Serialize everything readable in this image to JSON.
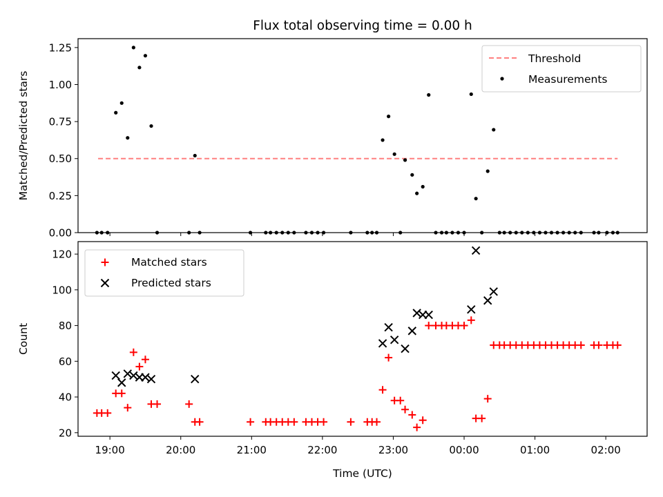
{
  "figure": {
    "title": "Flux total observing time = 0.00 h"
  },
  "chart_data": [
    {
      "type": "scatter",
      "panel": "top",
      "title": "Flux total observing time = 0.00 h",
      "xlabel": "",
      "ylabel": "Matched/Predicted stars",
      "x_type": "time",
      "xlim": [
        "18:33",
        "02:35"
      ],
      "ylim": [
        0,
        1.31
      ],
      "yticks": [
        0.0,
        0.25,
        0.5,
        0.75,
        1.0,
        1.25
      ],
      "ytick_labels": [
        "0.00",
        "0.25",
        "0.50",
        "0.75",
        "1.00",
        "1.25"
      ],
      "grid": false,
      "legend": {
        "placement": "top-right",
        "entries": [
          "Threshold",
          "Measurements"
        ]
      },
      "threshold": {
        "name": "Threshold",
        "y": 0.5,
        "x_start": "18:50",
        "x_end": "02:10",
        "color": "#ff7f7f",
        "style": "dashed"
      },
      "series": [
        {
          "name": "Measurements",
          "marker": "dot",
          "color": "#000000",
          "points": [
            [
              "18:49",
              0.0
            ],
            [
              "18:53",
              0.0
            ],
            [
              "18:58",
              0.0
            ],
            [
              "19:05",
              0.81
            ],
            [
              "19:10",
              0.875
            ],
            [
              "19:15",
              0.64
            ],
            [
              "19:20",
              1.25
            ],
            [
              "19:25",
              1.115
            ],
            [
              "19:30",
              1.195
            ],
            [
              "19:35",
              0.72
            ],
            [
              "19:40",
              0.0
            ],
            [
              "20:07",
              0.0
            ],
            [
              "20:12",
              0.52
            ],
            [
              "20:16",
              0.0
            ],
            [
              "20:59",
              0.0
            ],
            [
              "21:12",
              0.0
            ],
            [
              "21:16",
              0.0
            ],
            [
              "21:21",
              0.0
            ],
            [
              "21:26",
              0.0
            ],
            [
              "21:31",
              0.0
            ],
            [
              "21:36",
              0.0
            ],
            [
              "21:46",
              0.0
            ],
            [
              "21:51",
              0.0
            ],
            [
              "21:56",
              0.0
            ],
            [
              "22:01",
              0.0
            ],
            [
              "22:24",
              0.0
            ],
            [
              "22:38",
              0.0
            ],
            [
              "22:42",
              0.0
            ],
            [
              "22:46",
              0.0
            ],
            [
              "22:51",
              0.625
            ],
            [
              "22:56",
              0.785
            ],
            [
              "23:01",
              0.53
            ],
            [
              "23:06",
              0.0
            ],
            [
              "23:10",
              0.49
            ],
            [
              "23:16",
              0.39
            ],
            [
              "23:20",
              0.265
            ],
            [
              "23:25",
              0.31
            ],
            [
              "23:30",
              0.93
            ],
            [
              "23:36",
              0.0
            ],
            [
              "23:41",
              0.0
            ],
            [
              "23:45",
              0.0
            ],
            [
              "23:50",
              0.0
            ],
            [
              "23:55",
              0.0
            ],
            [
              "00:00",
              0.0
            ],
            [
              "00:06",
              0.935
            ],
            [
              "00:10",
              0.23
            ],
            [
              "00:15",
              0.0
            ],
            [
              "00:20",
              0.415
            ],
            [
              "00:25",
              0.695
            ],
            [
              "00:30",
              0.0
            ],
            [
              "00:34",
              0.0
            ],
            [
              "00:39",
              0.0
            ],
            [
              "00:44",
              0.0
            ],
            [
              "00:49",
              0.0
            ],
            [
              "00:54",
              0.0
            ],
            [
              "00:59",
              0.0
            ],
            [
              "01:04",
              0.0
            ],
            [
              "01:09",
              0.0
            ],
            [
              "01:14",
              0.0
            ],
            [
              "01:19",
              0.0
            ],
            [
              "01:24",
              0.0
            ],
            [
              "01:29",
              0.0
            ],
            [
              "01:34",
              0.0
            ],
            [
              "01:39",
              0.0
            ],
            [
              "01:50",
              0.0
            ],
            [
              "01:54",
              0.0
            ],
            [
              "02:01",
              0.0
            ],
            [
              "02:06",
              0.0
            ],
            [
              "02:10",
              0.0
            ]
          ]
        }
      ]
    },
    {
      "type": "scatter",
      "panel": "bottom",
      "title": "",
      "xlabel": "Time (UTC)",
      "ylabel": "Count",
      "x_type": "time",
      "xlim": [
        "18:33",
        "02:35"
      ],
      "ylim": [
        18,
        127
      ],
      "xticks": [
        "19:00",
        "20:00",
        "21:00",
        "22:00",
        "23:00",
        "00:00",
        "01:00",
        "02:00"
      ],
      "yticks": [
        20,
        40,
        60,
        80,
        100,
        120
      ],
      "ytick_labels": [
        "20",
        "40",
        "60",
        "80",
        "100",
        "120"
      ],
      "grid": false,
      "legend": {
        "placement": "top-left",
        "entries": [
          "Matched stars",
          "Predicted stars"
        ]
      },
      "series": [
        {
          "name": "Matched stars",
          "marker": "plus",
          "color": "#ff0000",
          "points": [
            [
              "18:49",
              31
            ],
            [
              "18:53",
              31
            ],
            [
              "18:58",
              31
            ],
            [
              "19:05",
              42
            ],
            [
              "19:10",
              42
            ],
            [
              "19:15",
              34
            ],
            [
              "19:20",
              65
            ],
            [
              "19:25",
              57
            ],
            [
              "19:30",
              61
            ],
            [
              "19:35",
              36
            ],
            [
              "19:40",
              36
            ],
            [
              "20:07",
              36
            ],
            [
              "20:12",
              26
            ],
            [
              "20:16",
              26
            ],
            [
              "20:59",
              26
            ],
            [
              "21:12",
              26
            ],
            [
              "21:16",
              26
            ],
            [
              "21:21",
              26
            ],
            [
              "21:26",
              26
            ],
            [
              "21:31",
              26
            ],
            [
              "21:36",
              26
            ],
            [
              "21:46",
              26
            ],
            [
              "21:51",
              26
            ],
            [
              "21:56",
              26
            ],
            [
              "22:01",
              26
            ],
            [
              "22:24",
              26
            ],
            [
              "22:38",
              26
            ],
            [
              "22:42",
              26
            ],
            [
              "22:46",
              26
            ],
            [
              "22:51",
              44
            ],
            [
              "22:56",
              62
            ],
            [
              "23:01",
              38
            ],
            [
              "23:06",
              38
            ],
            [
              "23:10",
              33
            ],
            [
              "23:16",
              30
            ],
            [
              "23:20",
              23
            ],
            [
              "23:25",
              27
            ],
            [
              "23:30",
              80
            ],
            [
              "23:36",
              80
            ],
            [
              "23:41",
              80
            ],
            [
              "23:45",
              80
            ],
            [
              "23:50",
              80
            ],
            [
              "23:55",
              80
            ],
            [
              "00:00",
              80
            ],
            [
              "00:06",
              83
            ],
            [
              "00:10",
              28
            ],
            [
              "00:15",
              28
            ],
            [
              "00:20",
              39
            ],
            [
              "00:25",
              69
            ],
            [
              "00:30",
              69
            ],
            [
              "00:34",
              69
            ],
            [
              "00:39",
              69
            ],
            [
              "00:44",
              69
            ],
            [
              "00:49",
              69
            ],
            [
              "00:54",
              69
            ],
            [
              "00:59",
              69
            ],
            [
              "01:04",
              69
            ],
            [
              "01:09",
              69
            ],
            [
              "01:14",
              69
            ],
            [
              "01:19",
              69
            ],
            [
              "01:24",
              69
            ],
            [
              "01:29",
              69
            ],
            [
              "01:34",
              69
            ],
            [
              "01:39",
              69
            ],
            [
              "01:50",
              69
            ],
            [
              "01:54",
              69
            ],
            [
              "02:01",
              69
            ],
            [
              "02:06",
              69
            ],
            [
              "02:10",
              69
            ]
          ]
        },
        {
          "name": "Predicted stars",
          "marker": "x",
          "color": "#000000",
          "points": [
            [
              "19:05",
              52
            ],
            [
              "19:10",
              48
            ],
            [
              "19:15",
              53
            ],
            [
              "19:20",
              52
            ],
            [
              "19:25",
              51
            ],
            [
              "19:30",
              51
            ],
            [
              "19:35",
              50
            ],
            [
              "20:12",
              50
            ],
            [
              "22:51",
              70
            ],
            [
              "22:56",
              79
            ],
            [
              "23:01",
              72
            ],
            [
              "23:10",
              67
            ],
            [
              "23:16",
              77
            ],
            [
              "23:20",
              87
            ],
            [
              "23:25",
              86
            ],
            [
              "23:30",
              86
            ],
            [
              "00:06",
              89
            ],
            [
              "00:10",
              122
            ],
            [
              "00:20",
              94
            ],
            [
              "00:25",
              99
            ]
          ]
        }
      ]
    }
  ]
}
